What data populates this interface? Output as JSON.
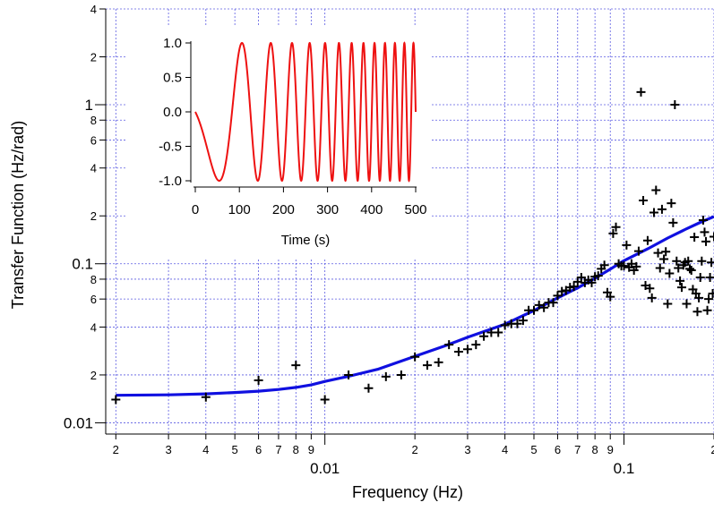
{
  "chart_data": [
    {
      "type": "scatter",
      "title": "",
      "xlabel": "Frequency (Hz)",
      "ylabel": "Transfer Function (Hz/rad)",
      "xscale": "log",
      "yscale": "log",
      "xlim": [
        0.00185,
        0.2
      ],
      "ylim": [
        0.0085,
        4.0
      ],
      "grid": true,
      "x_major_ticks": [
        {
          "value": 0.01,
          "label": "0.01"
        },
        {
          "value": 0.1,
          "label": "0.1"
        }
      ],
      "x_minor_ticks": [
        {
          "value": 0.002,
          "label": "2"
        },
        {
          "value": 0.003,
          "label": "3"
        },
        {
          "value": 0.004,
          "label": "4"
        },
        {
          "value": 0.005,
          "label": "5"
        },
        {
          "value": 0.006,
          "label": "6"
        },
        {
          "value": 0.007,
          "label": "7"
        },
        {
          "value": 0.008,
          "label": "8"
        },
        {
          "value": 0.009,
          "label": "9"
        },
        {
          "value": 0.02,
          "label": "2"
        },
        {
          "value": 0.03,
          "label": "3"
        },
        {
          "value": 0.04,
          "label": "4"
        },
        {
          "value": 0.05,
          "label": "5"
        },
        {
          "value": 0.06,
          "label": "6"
        },
        {
          "value": 0.07,
          "label": "7"
        },
        {
          "value": 0.08,
          "label": "8"
        },
        {
          "value": 0.09,
          "label": "9"
        },
        {
          "value": 0.2,
          "label": "2"
        }
      ],
      "y_major_ticks": [
        {
          "value": 0.01,
          "label": "0.01"
        },
        {
          "value": 0.1,
          "label": "0.1"
        },
        {
          "value": 1,
          "label": "1"
        }
      ],
      "y_minor_ticks": [
        {
          "value": 0.02,
          "label": "2"
        },
        {
          "value": 0.04,
          "label": "4"
        },
        {
          "value": 0.06,
          "label": "6"
        },
        {
          "value": 0.08,
          "label": "8"
        },
        {
          "value": 0.2,
          "label": "2"
        },
        {
          "value": 0.4,
          "label": "4"
        },
        {
          "value": 0.6,
          "label": "6"
        },
        {
          "value": 0.8,
          "label": "8"
        },
        {
          "value": 2,
          "label": "2"
        },
        {
          "value": 4,
          "label": "4"
        }
      ],
      "series": [
        {
          "kind": "scatter",
          "marker": "+",
          "color": "#000000",
          "points": [
            [
              0.002,
              0.014
            ],
            [
              0.004,
              0.0145
            ],
            [
              0.006,
              0.0185
            ],
            [
              0.008,
              0.023
            ],
            [
              0.01,
              0.014
            ],
            [
              0.012,
              0.02
            ],
            [
              0.014,
              0.0165
            ],
            [
              0.016,
              0.0195
            ],
            [
              0.018,
              0.02
            ],
            [
              0.02,
              0.026
            ],
            [
              0.022,
              0.023
            ],
            [
              0.024,
              0.024
            ],
            [
              0.026,
              0.031
            ],
            [
              0.028,
              0.028
            ],
            [
              0.03,
              0.029
            ],
            [
              0.032,
              0.031
            ],
            [
              0.034,
              0.035
            ],
            [
              0.036,
              0.037
            ],
            [
              0.038,
              0.037
            ],
            [
              0.04,
              0.041
            ],
            [
              0.042,
              0.042
            ],
            [
              0.044,
              0.042
            ],
            [
              0.046,
              0.044
            ],
            [
              0.048,
              0.051
            ],
            [
              0.05,
              0.051
            ],
            [
              0.052,
              0.055
            ],
            [
              0.054,
              0.053
            ],
            [
              0.056,
              0.057
            ],
            [
              0.058,
              0.057
            ],
            [
              0.06,
              0.063
            ],
            [
              0.062,
              0.067
            ],
            [
              0.064,
              0.068
            ],
            [
              0.066,
              0.071
            ],
            [
              0.068,
              0.072
            ],
            [
              0.07,
              0.077
            ],
            [
              0.072,
              0.082
            ],
            [
              0.074,
              0.076
            ],
            [
              0.076,
              0.079
            ],
            [
              0.078,
              0.076
            ],
            [
              0.08,
              0.083
            ],
            [
              0.082,
              0.084
            ],
            [
              0.084,
              0.093
            ],
            [
              0.086,
              0.098
            ],
            [
              0.088,
              0.066
            ],
            [
              0.09,
              0.062
            ],
            [
              0.092,
              0.155
            ],
            [
              0.094,
              0.17
            ],
            [
              0.096,
              0.1
            ],
            [
              0.098,
              0.097
            ],
            [
              0.1,
              0.097
            ],
            [
              0.102,
              0.131
            ],
            [
              0.104,
              0.095
            ],
            [
              0.106,
              0.1
            ],
            [
              0.108,
              0.091
            ],
            [
              0.11,
              0.096
            ],
            [
              0.112,
              0.12
            ],
            [
              0.114,
              1.2
            ],
            [
              0.116,
              0.25
            ],
            [
              0.118,
              0.073
            ],
            [
              0.12,
              0.14
            ],
            [
              0.122,
              0.07
            ],
            [
              0.124,
              0.061
            ],
            [
              0.126,
              0.21
            ],
            [
              0.128,
              0.29
            ],
            [
              0.13,
              0.117
            ],
            [
              0.132,
              0.094
            ],
            [
              0.134,
              0.22
            ],
            [
              0.136,
              0.107
            ],
            [
              0.138,
              0.119
            ],
            [
              0.14,
              0.056
            ],
            [
              0.142,
              0.087
            ],
            [
              0.144,
              0.24
            ],
            [
              0.146,
              0.181
            ],
            [
              0.148,
              1.0
            ],
            [
              0.15,
              0.104
            ],
            [
              0.152,
              0.094
            ],
            [
              0.154,
              0.078
            ],
            [
              0.156,
              0.071
            ],
            [
              0.158,
              0.098
            ],
            [
              0.16,
              0.102
            ],
            [
              0.162,
              0.056
            ],
            [
              0.164,
              0.104
            ],
            [
              0.166,
              0.093
            ],
            [
              0.168,
              0.091
            ],
            [
              0.17,
              0.069
            ],
            [
              0.172,
              0.147
            ],
            [
              0.174,
              0.065
            ],
            [
              0.176,
              0.05
            ],
            [
              0.178,
              0.061
            ],
            [
              0.18,
              0.082
            ],
            [
              0.182,
              0.104
            ],
            [
              0.184,
              0.188
            ],
            [
              0.186,
              0.158
            ],
            [
              0.188,
              0.138
            ],
            [
              0.19,
              0.051
            ],
            [
              0.192,
              0.06
            ],
            [
              0.194,
              0.082
            ],
            [
              0.196,
              0.102
            ],
            [
              0.198,
              0.065
            ],
            [
              0.2,
              0.148
            ]
          ]
        },
        {
          "kind": "line",
          "color": "#1010e0",
          "points": [
            [
              0.002,
              0.0149
            ],
            [
              0.003,
              0.015
            ],
            [
              0.004,
              0.0152
            ],
            [
              0.005,
              0.0155
            ],
            [
              0.006,
              0.0158
            ],
            [
              0.007,
              0.0162
            ],
            [
              0.008,
              0.0167
            ],
            [
              0.009,
              0.0173
            ],
            [
              0.01,
              0.0182
            ],
            [
              0.012,
              0.0196
            ],
            [
              0.015,
              0.0217
            ],
            [
              0.02,
              0.0262
            ],
            [
              0.025,
              0.0303
            ],
            [
              0.03,
              0.0345
            ],
            [
              0.04,
              0.0417
            ],
            [
              0.05,
              0.0508
            ],
            [
              0.06,
              0.061
            ],
            [
              0.07,
              0.0705
            ],
            [
              0.08,
              0.081
            ],
            [
              0.09,
              0.0925
            ],
            [
              0.1,
              0.1045
            ],
            [
              0.12,
              0.124
            ],
            [
              0.14,
              0.145
            ],
            [
              0.16,
              0.164
            ],
            [
              0.18,
              0.182
            ],
            [
              0.2,
              0.198
            ]
          ]
        }
      ]
    },
    {
      "type": "line",
      "title": "",
      "xlabel": "Time (s)",
      "ylabel": "",
      "xlim": [
        0,
        500
      ],
      "ylim": [
        -1.0,
        1.0
      ],
      "grid": false,
      "x_ticks": [
        0,
        100,
        200,
        300,
        400,
        500
      ],
      "x_tick_labels": [
        "0",
        "100",
        "200",
        "300",
        "400",
        "500"
      ],
      "y_ticks": [
        1.0,
        0.5,
        0.0,
        -0.5,
        -1.0
      ],
      "y_tick_labels": [
        "1.0",
        "0.5",
        "0.0",
        "-0.5",
        "-1.0"
      ],
      "series": [
        {
          "kind": "chirp",
          "color": "#ee1111",
          "function": "-sin(2*pi*f(t)*t)",
          "frequency_start_hz": 0.002,
          "frequency_end_hz": 0.05,
          "sweep": "linear"
        }
      ]
    }
  ]
}
